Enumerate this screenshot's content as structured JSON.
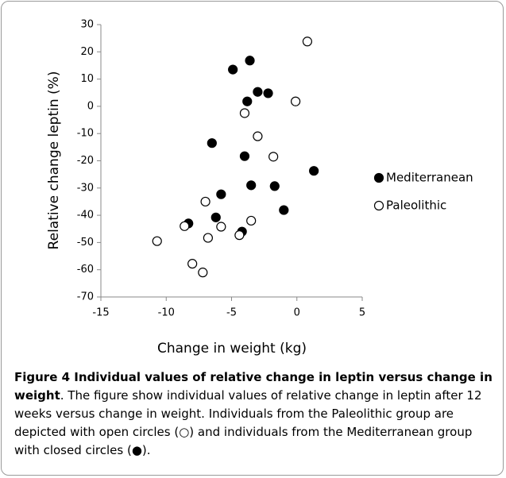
{
  "chart_data": {
    "type": "scatter",
    "xlabel": "Change in weight (kg)",
    "ylabel": "Relative change leptin (%)",
    "xlim": [
      -15,
      5
    ],
    "xticks": [
      -15,
      -10,
      -5,
      0,
      5
    ],
    "ylim": [
      -70,
      30
    ],
    "yticks": [
      -70,
      -60,
      -50,
      -40,
      -30,
      -20,
      -10,
      0,
      10,
      20,
      30
    ],
    "legend": "right",
    "series": [
      {
        "name": "Mediterranean",
        "color": "#000000",
        "marker": "filled",
        "x": [
          -4.9,
          -3.6,
          -3.0,
          -3.8,
          -2.2,
          -6.5,
          -4.0,
          1.3,
          -3.5,
          -1.7,
          -5.8,
          -1.0,
          -6.2,
          -8.3,
          -4.2
        ],
        "values": [
          13.5,
          16.8,
          5.3,
          1.8,
          4.8,
          -13.5,
          -18.3,
          -23.7,
          -29,
          -29.3,
          -32.3,
          -38.1,
          -40.8,
          -43,
          -46
        ]
      },
      {
        "name": "Paleolithic",
        "color": "#000000",
        "marker": "open",
        "x": [
          0.8,
          -0.1,
          -4.0,
          -3.0,
          -1.8,
          -7.0,
          -3.5,
          -5.8,
          -8.6,
          -4.4,
          -6.8,
          -10.7,
          -8.0,
          -7.2
        ],
        "values": [
          23.8,
          1.8,
          -2.5,
          -11,
          -18.5,
          -35,
          -42,
          -44.2,
          -44,
          -47.3,
          -48.3,
          -49.5,
          -57.8,
          -61
        ]
      }
    ]
  },
  "caption": {
    "title": "Figure 4 Individual values of relative change in leptin versus change in weight",
    "text": ". The figure show individual values of relative change in leptin after 12 weeks versus change in weight. Individuals from the Paleolithic group are depicted with open circles (○) and individuals from the Mediterranean group with closed circles (●)."
  }
}
